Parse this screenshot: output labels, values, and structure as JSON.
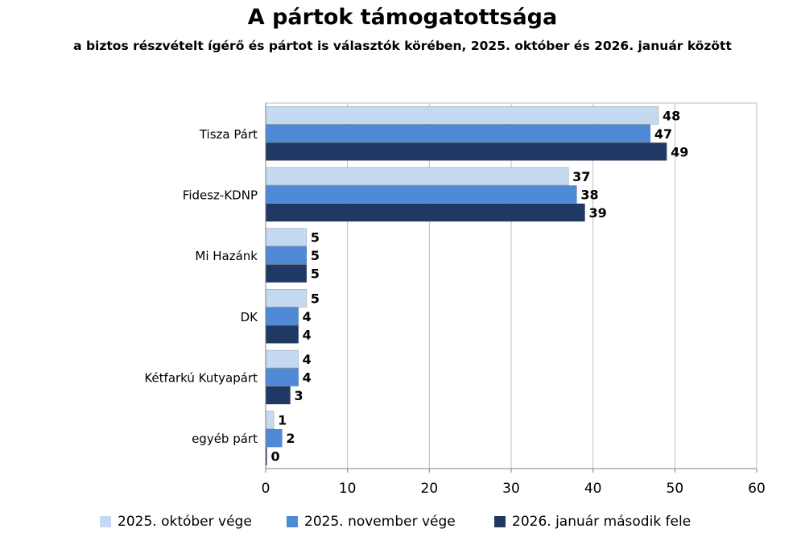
{
  "chart_data": {
    "type": "bar",
    "orientation": "horizontal",
    "title": "A pártok támogatottsága",
    "subtitle": "a biztos részvételt ígérő és pártot is választók körében, 2025. október és 2026. január között",
    "categories": [
      "Tisza Párt",
      "Fidesz-KDNP",
      "Mi Hazánk",
      "DK",
      "Kétfarkú Kutyapárt",
      "egyéb párt"
    ],
    "series": [
      {
        "name": "2025. október vége",
        "color": "#c5d9f1",
        "values": [
          48,
          37,
          5,
          5,
          4,
          1
        ]
      },
      {
        "name": "2025. november vége",
        "color": "#4f8ad6",
        "values": [
          47,
          38,
          5,
          4,
          4,
          2
        ]
      },
      {
        "name": "2026. január második fele",
        "color": "#1f3864",
        "values": [
          49,
          39,
          5,
          4,
          3,
          0
        ]
      }
    ],
    "xlim": [
      0,
      60
    ],
    "xticks": [
      0,
      10,
      20,
      30,
      40,
      50,
      60
    ],
    "grid": true,
    "legend": "bottom"
  }
}
